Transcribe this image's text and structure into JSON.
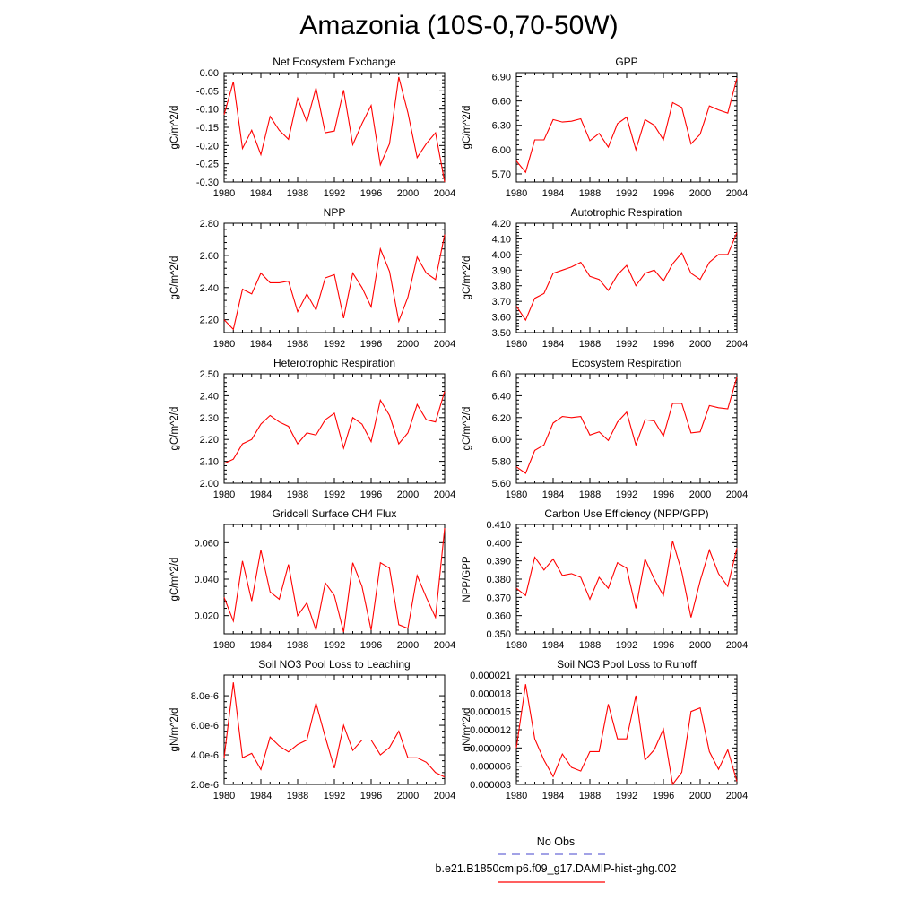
{
  "title": "Amazonia (10S-0,70-50W)",
  "line_color": "#ff0000",
  "legend": {
    "items": [
      {
        "label": "No Obs",
        "style": "dashed",
        "color": "#6a6ad8"
      },
      {
        "label": "b.e21.B1850cmip6.f09_g17.DAMIP-hist-ghg.002",
        "style": "solid",
        "color": "#ff0000"
      }
    ]
  },
  "chart_data": [
    {
      "type": "line",
      "title": "Net Ecosystem Exchange",
      "ylabel": "gC/m^2/d",
      "xlim": [
        1980,
        2004
      ],
      "ylim": [
        -0.3,
        0.0
      ],
      "xticks": [
        "1980",
        "1984",
        "1988",
        "1992",
        "1996",
        "2000",
        "2004"
      ],
      "yticks": [
        "-0.30",
        "-0.25",
        "-0.20",
        "-0.15",
        "-0.10",
        "-0.05",
        "0.00"
      ],
      "x": [
        1980,
        1981,
        1982,
        1983,
        1984,
        1985,
        1986,
        1987,
        1988,
        1989,
        1990,
        1991,
        1992,
        1993,
        1994,
        1995,
        1996,
        1997,
        1998,
        1999,
        2000,
        2001,
        2002,
        2003,
        2004
      ],
      "y": [
        -0.115,
        -0.025,
        -0.208,
        -0.158,
        -0.225,
        -0.12,
        -0.158,
        -0.183,
        -0.07,
        -0.135,
        -0.042,
        -0.165,
        -0.16,
        -0.048,
        -0.198,
        -0.14,
        -0.09,
        -0.253,
        -0.195,
        -0.012,
        -0.11,
        -0.233,
        -0.195,
        -0.165,
        -0.3
      ]
    },
    {
      "type": "line",
      "title": "GPP",
      "ylabel": "gC/m^2/d",
      "xlim": [
        1980,
        2004
      ],
      "ylim": [
        5.6,
        6.95
      ],
      "xticks": [
        "1980",
        "1984",
        "1988",
        "1992",
        "1996",
        "2000",
        "2004"
      ],
      "yticks": [
        "5.70",
        "6.00",
        "6.30",
        "6.60",
        "6.90"
      ],
      "x": [
        1980,
        1981,
        1982,
        1983,
        1984,
        1985,
        1986,
        1987,
        1988,
        1989,
        1990,
        1991,
        1992,
        1993,
        1994,
        1995,
        1996,
        1997,
        1998,
        1999,
        2000,
        2001,
        2002,
        2003,
        2004
      ],
      "y": [
        5.86,
        5.72,
        6.12,
        6.12,
        6.37,
        6.34,
        6.35,
        6.38,
        6.11,
        6.2,
        6.03,
        6.32,
        6.4,
        6.0,
        6.37,
        6.3,
        6.12,
        6.58,
        6.52,
        6.07,
        6.19,
        6.54,
        6.49,
        6.45,
        6.88
      ]
    },
    {
      "type": "line",
      "title": "NPP",
      "ylabel": "gC/m^2/d",
      "xlim": [
        1980,
        2004
      ],
      "ylim": [
        2.12,
        2.8
      ],
      "xticks": [
        "1980",
        "1984",
        "1988",
        "1992",
        "1996",
        "2000",
        "2004"
      ],
      "yticks": [
        "2.20",
        "2.40",
        "2.60",
        "2.80"
      ],
      "x": [
        1980,
        1981,
        1982,
        1983,
        1984,
        1985,
        1986,
        1987,
        1988,
        1989,
        1990,
        1991,
        1992,
        1993,
        1994,
        1995,
        1996,
        1997,
        1998,
        1999,
        2000,
        2001,
        2002,
        2003,
        2004
      ],
      "y": [
        2.2,
        2.14,
        2.39,
        2.36,
        2.49,
        2.43,
        2.43,
        2.44,
        2.25,
        2.36,
        2.26,
        2.46,
        2.48,
        2.21,
        2.49,
        2.4,
        2.28,
        2.64,
        2.5,
        2.19,
        2.34,
        2.59,
        2.49,
        2.45,
        2.73
      ]
    },
    {
      "type": "line",
      "title": "Autotrophic Respiration",
      "ylabel": "gC/m^2/d",
      "xlim": [
        1980,
        2004
      ],
      "ylim": [
        3.5,
        4.2
      ],
      "xticks": [
        "1980",
        "1984",
        "1988",
        "1992",
        "1996",
        "2000",
        "2004"
      ],
      "yticks": [
        "3.50",
        "3.60",
        "3.70",
        "3.80",
        "3.90",
        "4.00",
        "4.10",
        "4.20"
      ],
      "x": [
        1980,
        1981,
        1982,
        1983,
        1984,
        1985,
        1986,
        1987,
        1988,
        1989,
        1990,
        1991,
        1992,
        1993,
        1994,
        1995,
        1996,
        1997,
        1998,
        1999,
        2000,
        2001,
        2002,
        2003,
        2004
      ],
      "y": [
        3.67,
        3.58,
        3.72,
        3.75,
        3.88,
        3.9,
        3.92,
        3.95,
        3.86,
        3.84,
        3.77,
        3.87,
        3.93,
        3.8,
        3.88,
        3.9,
        3.83,
        3.94,
        4.01,
        3.88,
        3.84,
        3.95,
        4.0,
        4.0,
        4.14
      ]
    },
    {
      "type": "line",
      "title": "Heterotrophic Respiration",
      "ylabel": "gC/m^2/d",
      "xlim": [
        1980,
        2004
      ],
      "ylim": [
        2.0,
        2.5
      ],
      "xticks": [
        "1980",
        "1984",
        "1988",
        "1992",
        "1996",
        "2000",
        "2004"
      ],
      "yticks": [
        "2.00",
        "2.10",
        "2.20",
        "2.30",
        "2.40",
        "2.50"
      ],
      "x": [
        1980,
        1981,
        1982,
        1983,
        1984,
        1985,
        1986,
        1987,
        1988,
        1989,
        1990,
        1991,
        1992,
        1993,
        1994,
        1995,
        1996,
        1997,
        1998,
        1999,
        2000,
        2001,
        2002,
        2003,
        2004
      ],
      "y": [
        2.09,
        2.11,
        2.18,
        2.2,
        2.27,
        2.31,
        2.28,
        2.26,
        2.18,
        2.23,
        2.22,
        2.29,
        2.32,
        2.16,
        2.3,
        2.27,
        2.19,
        2.38,
        2.31,
        2.18,
        2.23,
        2.36,
        2.29,
        2.28,
        2.42
      ]
    },
    {
      "type": "line",
      "title": "Ecosystem Respiration",
      "ylabel": "gC/m^2/d",
      "xlim": [
        1980,
        2004
      ],
      "ylim": [
        5.6,
        6.6
      ],
      "xticks": [
        "1980",
        "1984",
        "1988",
        "1992",
        "1996",
        "2000",
        "2004"
      ],
      "yticks": [
        "5.60",
        "5.80",
        "6.00",
        "6.20",
        "6.40",
        "6.60"
      ],
      "x": [
        1980,
        1981,
        1982,
        1983,
        1984,
        1985,
        1986,
        1987,
        1988,
        1989,
        1990,
        1991,
        1992,
        1993,
        1994,
        1995,
        1996,
        1997,
        1998,
        1999,
        2000,
        2001,
        2002,
        2003,
        2004
      ],
      "y": [
        5.75,
        5.69,
        5.9,
        5.95,
        6.15,
        6.21,
        6.2,
        6.21,
        6.04,
        6.07,
        5.99,
        6.16,
        6.25,
        5.95,
        6.18,
        6.17,
        6.03,
        6.33,
        6.33,
        6.06,
        6.07,
        6.31,
        6.29,
        6.28,
        6.57
      ]
    },
    {
      "type": "line",
      "title": "Gridcell Surface CH4 Flux",
      "ylabel": "gC/m^2/d",
      "xlim": [
        1980,
        2004
      ],
      "ylim": [
        0.01,
        0.07
      ],
      "xticks": [
        "1980",
        "1984",
        "1988",
        "1992",
        "1996",
        "2000",
        "2004"
      ],
      "yticks": [
        "0.020",
        "0.040",
        "0.060"
      ],
      "x": [
        1980,
        1981,
        1982,
        1983,
        1984,
        1985,
        1986,
        1987,
        1988,
        1989,
        1990,
        1991,
        1992,
        1993,
        1994,
        1995,
        1996,
        1997,
        1998,
        1999,
        2000,
        2001,
        2002,
        2003,
        2004
      ],
      "y": [
        0.03,
        0.017,
        0.05,
        0.028,
        0.056,
        0.033,
        0.029,
        0.048,
        0.02,
        0.027,
        0.012,
        0.038,
        0.031,
        0.011,
        0.049,
        0.036,
        0.012,
        0.049,
        0.046,
        0.015,
        0.013,
        0.042,
        0.03,
        0.019,
        0.068
      ]
    },
    {
      "type": "line",
      "title": "Carbon Use Efficiency (NPP/GPP)",
      "ylabel": "NPP/GPP",
      "xlim": [
        1980,
        2004
      ],
      "ylim": [
        0.35,
        0.41
      ],
      "xticks": [
        "1980",
        "1984",
        "1988",
        "1992",
        "1996",
        "2000",
        "2004"
      ],
      "yticks": [
        "0.350",
        "0.360",
        "0.370",
        "0.380",
        "0.390",
        "0.400",
        "0.410"
      ],
      "x": [
        1980,
        1981,
        1982,
        1983,
        1984,
        1985,
        1986,
        1987,
        1988,
        1989,
        1990,
        1991,
        1992,
        1993,
        1994,
        1995,
        1996,
        1997,
        1998,
        1999,
        2000,
        2001,
        2002,
        2003,
        2004
      ],
      "y": [
        0.375,
        0.371,
        0.392,
        0.385,
        0.391,
        0.382,
        0.383,
        0.381,
        0.369,
        0.381,
        0.375,
        0.389,
        0.386,
        0.364,
        0.391,
        0.38,
        0.371,
        0.401,
        0.384,
        0.359,
        0.379,
        0.396,
        0.383,
        0.376,
        0.397
      ]
    },
    {
      "type": "line",
      "title": "Soil NO3 Pool Loss to Leaching",
      "ylabel": "gN/m^2/d",
      "xlim": [
        1980,
        2004
      ],
      "ylim": [
        2e-06,
        9.4e-06
      ],
      "xticks": [
        "1980",
        "1984",
        "1988",
        "1992",
        "1996",
        "2000",
        "2004"
      ],
      "yticks": [
        "2.0e-6",
        "4.0e-6",
        "6.0e-6",
        "8.0e-6"
      ],
      "ytick_values": [
        2e-06,
        4e-06,
        6e-06,
        8e-06
      ],
      "x": [
        1980,
        1981,
        1982,
        1983,
        1984,
        1985,
        1986,
        1987,
        1988,
        1989,
        1990,
        1991,
        1992,
        1993,
        1994,
        1995,
        1996,
        1997,
        1998,
        1999,
        2000,
        2001,
        2002,
        2003,
        2004
      ],
      "y": [
        3.8e-06,
        8.9e-06,
        3.8e-06,
        4.1e-06,
        3e-06,
        5.2e-06,
        4.6e-06,
        4.2e-06,
        4.7e-06,
        5e-06,
        7.5e-06,
        5.2e-06,
        3.1e-06,
        6e-06,
        4.3e-06,
        5e-06,
        5e-06,
        4e-06,
        4.5e-06,
        5.6e-06,
        3.8e-06,
        3.8e-06,
        3.5e-06,
        2.8e-06,
        2.5e-06
      ]
    },
    {
      "type": "line",
      "title": "Soil NO3 Pool Loss to Runoff",
      "ylabel": "gN/m^2/d",
      "xlim": [
        1980,
        2004
      ],
      "ylim": [
        3e-06,
        2.1e-05
      ],
      "xticks": [
        "1980",
        "1984",
        "1988",
        "1992",
        "1996",
        "2000",
        "2004"
      ],
      "yticks": [
        "0.000003",
        "0.000006",
        "0.000009",
        "0.000012",
        "0.000015",
        "0.000018",
        "0.000021"
      ],
      "ytick_values": [
        3e-06,
        6e-06,
        9e-06,
        1.2e-05,
        1.5e-05,
        1.8e-05,
        2.1e-05
      ],
      "x": [
        1980,
        1981,
        1982,
        1983,
        1984,
        1985,
        1986,
        1987,
        1988,
        1989,
        1990,
        1991,
        1992,
        1993,
        1994,
        1995,
        1996,
        1997,
        1998,
        1999,
        2000,
        2001,
        2002,
        2003,
        2004
      ],
      "y": [
        9e-06,
        1.95e-05,
        1.05e-05,
        7e-06,
        4.3e-06,
        8e-06,
        5.8e-06,
        5.2e-06,
        8.4e-06,
        8.4e-06,
        1.62e-05,
        1.05e-05,
        1.05e-05,
        1.76e-05,
        7e-06,
        8.7e-06,
        1.21e-05,
        3e-06,
        5e-06,
        1.5e-05,
        1.56e-05,
        8.4e-06,
        5.5e-06,
        8.7e-06,
        3.5e-06
      ]
    }
  ]
}
